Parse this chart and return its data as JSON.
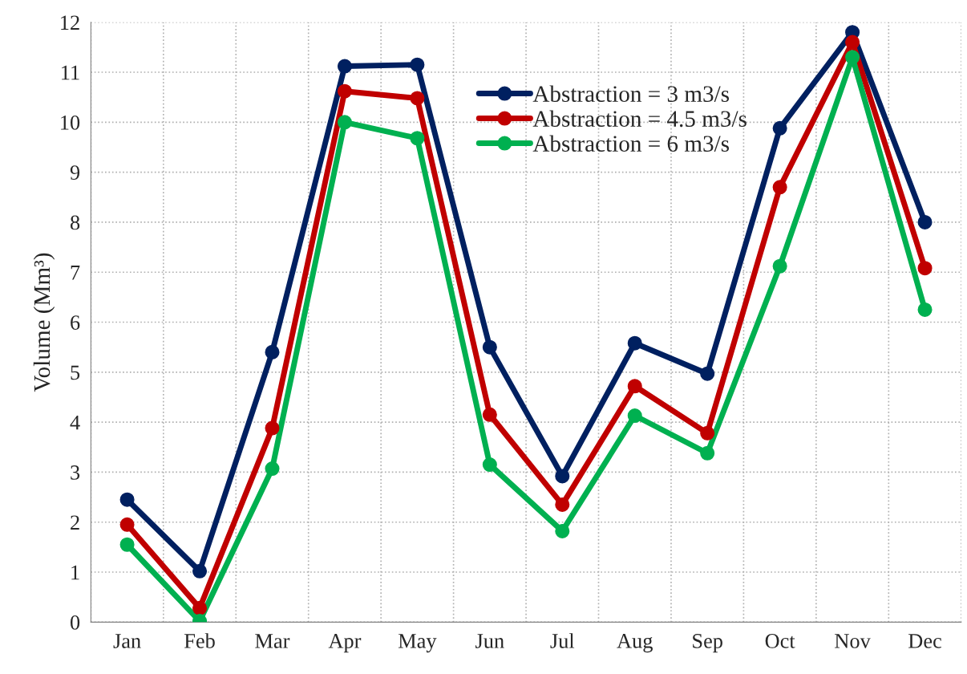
{
  "chart_data": {
    "type": "line",
    "ylabel": "Volume (Mm³)",
    "categories": [
      "Jan",
      "Feb",
      "Mar",
      "Apr",
      "May",
      "Jun",
      "Jul",
      "Aug",
      "Sep",
      "Oct",
      "Nov",
      "Dec"
    ],
    "series": [
      {
        "name": "Abstraction = 3 m3/s",
        "color": "#002060",
        "values": [
          2.45,
          1.02,
          5.4,
          11.12,
          11.15,
          5.5,
          2.92,
          5.58,
          4.97,
          9.88,
          11.8,
          8.0
        ]
      },
      {
        "name": "Abstraction = 4.5 m3/s",
        "color": "#c00000",
        "values": [
          1.95,
          0.28,
          3.88,
          10.62,
          10.48,
          4.15,
          2.35,
          4.72,
          3.78,
          8.7,
          11.6,
          7.08
        ]
      },
      {
        "name": "Abstraction = 6 m3/s",
        "color": "#00b050",
        "values": [
          1.55,
          0.02,
          3.07,
          10.0,
          9.68,
          3.15,
          1.82,
          4.13,
          3.38,
          7.12,
          11.3,
          6.25
        ]
      }
    ],
    "ylim": [
      0,
      12
    ],
    "yticks": [
      0,
      1,
      2,
      3,
      4,
      5,
      6,
      7,
      8,
      9,
      10,
      11,
      12
    ],
    "grid": true,
    "legend": "top",
    "marker": "circle",
    "line_style": "solid"
  }
}
